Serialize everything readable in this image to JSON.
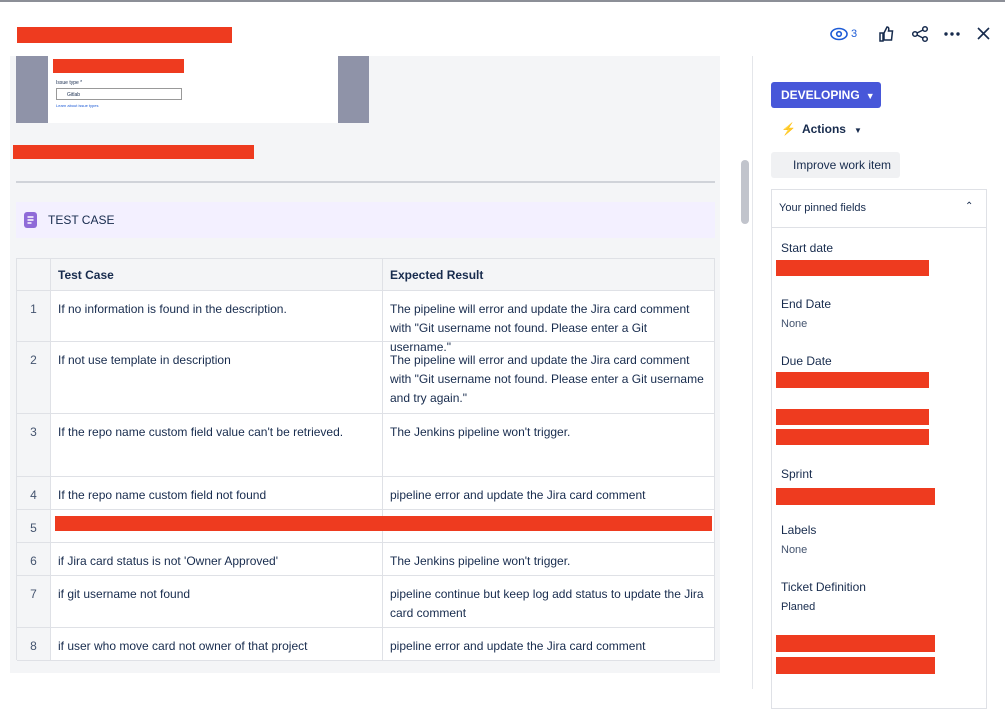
{
  "header": {
    "watchers": "3"
  },
  "attachment": {
    "field_label": "Issue type *",
    "field_value": "Gitlab",
    "link": "Learn about issue types"
  },
  "section": {
    "heading": "TEST CASE"
  },
  "table": {
    "headers": [
      "Test Case",
      "Expected Result"
    ],
    "rows": [
      {
        "num": "1",
        "case": "If no information is found in the description.",
        "result": "The pipeline will error and update the Jira card comment with \"Git username not found. Please enter a Git username.\""
      },
      {
        "num": "2",
        "case": "If not use template in description",
        "result": "The pipeline will error  and update the Jira card comment with \"Git username not found. Please enter a Git username and try again.\""
      },
      {
        "num": "3",
        "case": "If the repo name custom field value can't be retrieved.",
        "result": "The Jenkins pipeline won't trigger."
      },
      {
        "num": "4",
        "case": "If the repo name custom field not found",
        "result": "pipeline error and update the Jira card comment"
      },
      {
        "num": "5"
      },
      {
        "num": "6",
        "case": "if Jira card status is not 'Owner Approved'",
        "result": "The Jenkins pipeline won't trigger."
      },
      {
        "num": "7",
        "case": " if git username not found",
        "result": "pipeline continue but keep log add status to update the Jira card comment"
      },
      {
        "num": "8",
        "case": " if user who move card not owner of that project",
        "result": "pipeline error and update the Jira card comment"
      }
    ]
  },
  "sidebar": {
    "status": "DEVELOPING",
    "actions": "Actions",
    "improve": "Improve work item",
    "pinned_title": "Your pinned fields",
    "fields": [
      {
        "label": "Start date"
      },
      {
        "label": "End Date",
        "value": "None"
      },
      {
        "label": "Due Date"
      },
      {
        "label": "Sprint"
      },
      {
        "label": "Labels",
        "value": "None"
      },
      {
        "label": "Ticket Definition",
        "value": "Planed"
      }
    ]
  }
}
